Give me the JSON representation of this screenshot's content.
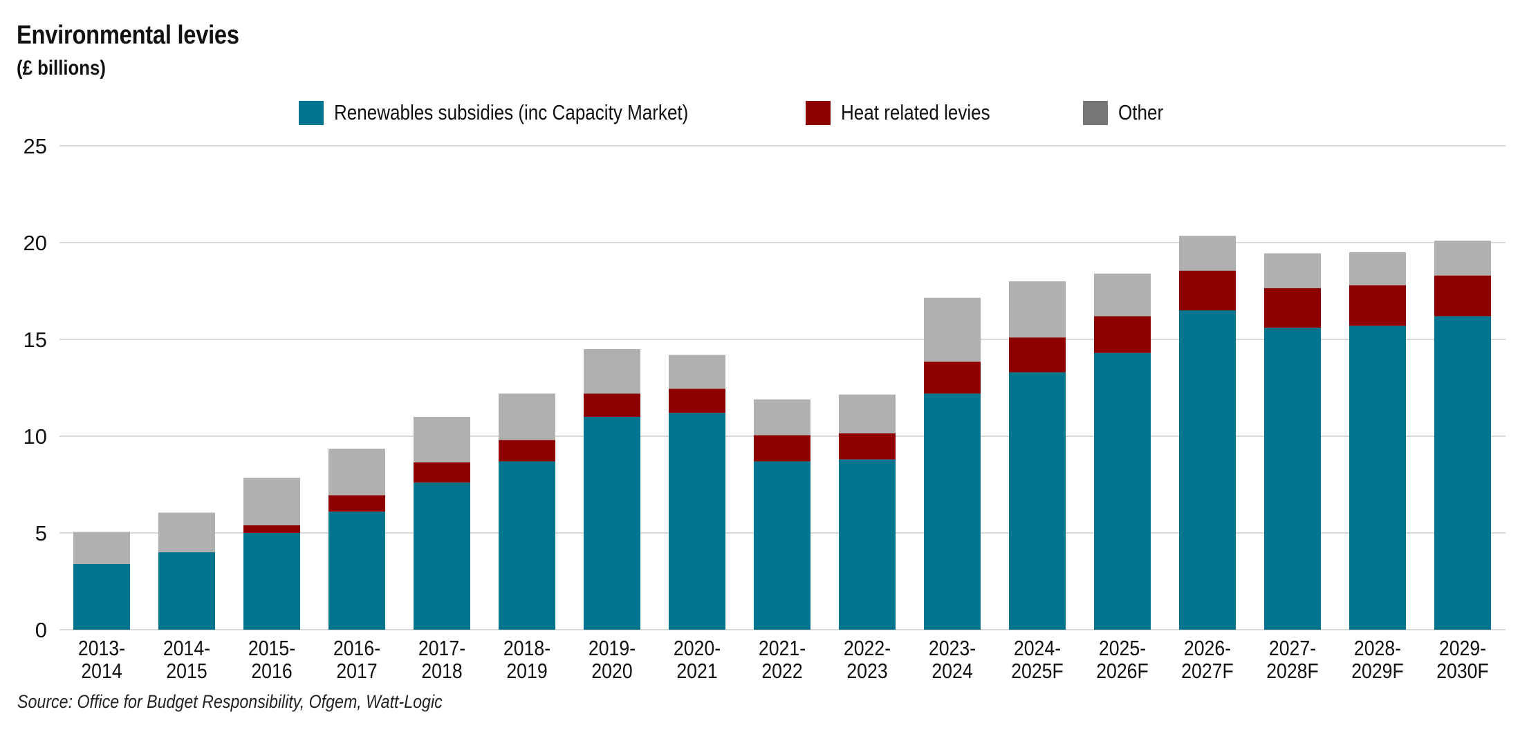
{
  "chart_data": {
    "type": "bar",
    "stacked": true,
    "title": "Environmental levies",
    "subtitle": "(£ billions)",
    "xlabel": "",
    "ylabel": "£ billions",
    "ylim": [
      0,
      25
    ],
    "yticks": [
      0,
      5,
      10,
      15,
      20,
      25
    ],
    "grid": true,
    "legend_position": "top-center",
    "categories": [
      [
        "2013-",
        "2014"
      ],
      [
        "2014-",
        "2015"
      ],
      [
        "2015-",
        "2016"
      ],
      [
        "2016-",
        "2017"
      ],
      [
        "2017-",
        "2018"
      ],
      [
        "2018-",
        "2019"
      ],
      [
        "2019-",
        "2020"
      ],
      [
        "2020-",
        "2021"
      ],
      [
        "2021-",
        "2022"
      ],
      [
        "2022-",
        "2023"
      ],
      [
        "2023-",
        "2024"
      ],
      [
        "2024-",
        "2025F"
      ],
      [
        "2025-",
        "2026F"
      ],
      [
        "2026-",
        "2027F"
      ],
      [
        "2027-",
        "2028F"
      ],
      [
        "2028-",
        "2029F"
      ],
      [
        "2029-",
        "2030F"
      ]
    ],
    "series": [
      {
        "name": "Renewables subsidies (inc Capacity Market)",
        "color": "#04758f",
        "legend_color": "#04758f",
        "values": [
          3.4,
          4.0,
          5.0,
          6.1,
          7.6,
          8.7,
          11.0,
          11.2,
          8.7,
          8.8,
          12.2,
          13.3,
          14.3,
          16.5,
          15.6,
          15.7,
          16.2
        ]
      },
      {
        "name": "Heat related levies",
        "color": "#8e0000",
        "legend_color": "#8e0000",
        "values": [
          0.0,
          0.0,
          0.4,
          0.85,
          1.05,
          1.1,
          1.2,
          1.25,
          1.35,
          1.35,
          1.65,
          1.8,
          1.9,
          2.05,
          2.05,
          2.1,
          2.1
        ]
      },
      {
        "name": "Other",
        "color": "#b0b0b0",
        "legend_color": "#767676",
        "values": [
          1.65,
          2.05,
          2.45,
          2.4,
          2.35,
          2.4,
          2.3,
          1.75,
          1.85,
          2.0,
          3.3,
          2.9,
          2.2,
          1.8,
          1.8,
          1.7,
          1.8
        ]
      }
    ],
    "source": "Source: Office for Budget Responsibility, Ofgem, Watt-Logic"
  }
}
